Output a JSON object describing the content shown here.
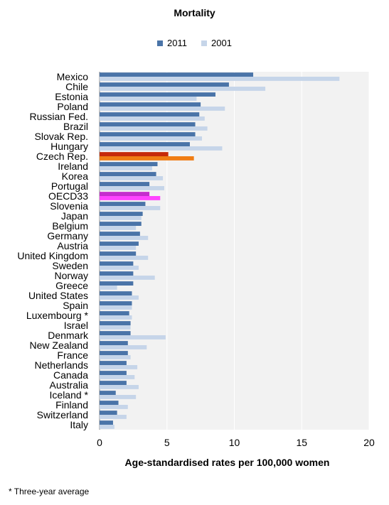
{
  "chart_data": {
    "type": "bar",
    "orientation": "horizontal",
    "title": "Mortality",
    "xlabel": "Age-standardised rates per 100,000 women",
    "xlim": [
      0,
      20
    ],
    "xticks": [
      0,
      5,
      10,
      15,
      20
    ],
    "grid": true,
    "legend": "top",
    "categories": [
      "Mexico",
      "Chile",
      "Estonia",
      "Poland",
      "Russian Fed.",
      "Brazil",
      "Slovak Rep.",
      "Hungary",
      "Czech Rep.",
      "Ireland",
      "Korea",
      "Portugal",
      "OECD33",
      "Slovenia",
      "Japan",
      "Belgium",
      "Germany",
      "Austria",
      "United Kingdom",
      "Sweden",
      "Norway",
      "Greece",
      "United States",
      "Spain",
      "Luxembourg *",
      "Israel",
      "Denmark",
      "New Zealand",
      "France",
      "Netherlands",
      "Canada",
      "Australia",
      "Iceland *",
      "Finland",
      "Switzerland",
      "Italy"
    ],
    "series": [
      {
        "name": "2011",
        "color": "#4a74a8",
        "values": [
          11.4,
          9.6,
          8.6,
          7.5,
          7.4,
          7.1,
          7.1,
          6.7,
          5.1,
          4.3,
          4.2,
          3.7,
          3.7,
          3.4,
          3.2,
          3.1,
          3.0,
          2.9,
          2.7,
          2.5,
          2.5,
          2.5,
          2.4,
          2.4,
          2.2,
          2.3,
          2.3,
          2.1,
          2.1,
          2.0,
          2.0,
          2.0,
          1.2,
          1.4,
          1.3,
          1.0
        ]
      },
      {
        "name": "2001",
        "color": "#c6d5e9",
        "values": [
          17.8,
          12.3,
          7.2,
          9.3,
          7.8,
          8.0,
          7.6,
          9.1,
          7.0,
          3.9,
          4.7,
          4.8,
          4.5,
          4.5,
          3.1,
          2.7,
          3.6,
          2.7,
          3.6,
          2.9,
          4.1,
          1.3,
          2.9,
          2.4,
          2.4,
          2.3,
          4.9,
          3.5,
          2.3,
          2.8,
          2.6,
          2.9,
          2.7,
          2.1,
          2.0,
          1.1
        ]
      }
    ],
    "highlights": {
      "Czech Rep.": {
        "2011": "#c62a0a",
        "2001": "#f07d14"
      },
      "OECD33": {
        "2011": "#c42ecd",
        "2001": "#ff44ff"
      }
    }
  },
  "footnote": "* Three-year average",
  "colors": {
    "plot_bg": "#f2f2f2",
    "grid": "#ffffff"
  }
}
